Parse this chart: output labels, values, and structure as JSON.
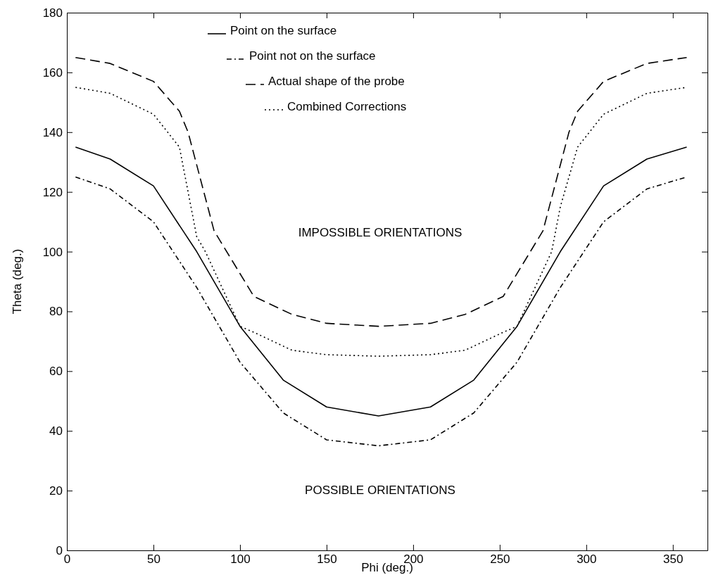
{
  "chart_data": {
    "type": "line",
    "xlabel": "Phi (deg.)",
    "ylabel": "Theta (deg.)",
    "xlim": [
      0,
      370
    ],
    "xticks": [
      0,
      50,
      100,
      150,
      200,
      250,
      300,
      350
    ],
    "ylim": [
      0,
      180
    ],
    "yticks": [
      0,
      20,
      40,
      60,
      80,
      100,
      120,
      140,
      160,
      180
    ],
    "grid": false,
    "legend": "top",
    "marker": "none",
    "annotations": [
      "IMPOSSIBLE ORIENTATIONS",
      "POSSIBLE ORIENTATIONS"
    ],
    "series": [
      {
        "name": "Point on the surface",
        "color": "#000000",
        "line_style": "solid",
        "x": [
          5,
          25,
          50,
          75,
          100,
          125,
          150,
          180,
          210,
          235,
          260,
          285,
          310,
          335,
          358
        ],
        "values": [
          135,
          131,
          122,
          100,
          75,
          57,
          48,
          45,
          48,
          57,
          75,
          100,
          122,
          131,
          135
        ]
      },
      {
        "name": "Point not on the surface",
        "color": "#000000",
        "line_style": "dashdot",
        "x": [
          5,
          25,
          50,
          75,
          100,
          125,
          150,
          180,
          210,
          235,
          260,
          285,
          310,
          335,
          358
        ],
        "values": [
          125,
          121,
          110,
          88,
          63,
          46,
          37,
          35,
          37,
          46,
          63,
          88,
          110,
          121,
          125
        ]
      },
      {
        "name": "Actual shape of the probe",
        "color": "#000000",
        "line_style": "dashed",
        "x": [
          5,
          25,
          50,
          65,
          70,
          85,
          108,
          130,
          150,
          180,
          210,
          230,
          252,
          275,
          290,
          295,
          310,
          335,
          358
        ],
        "values": [
          165,
          163,
          157,
          147,
          140,
          107,
          85,
          79,
          76,
          75,
          76,
          79,
          85,
          107,
          140,
          147,
          157,
          163,
          165
        ]
      },
      {
        "name": "Combined Corrections",
        "color": "#000000",
        "line_style": "dotted",
        "x": [
          5,
          25,
          50,
          65,
          75,
          80,
          100,
          108,
          130,
          150,
          180,
          210,
          230,
          252,
          260,
          280,
          285,
          295,
          310,
          335,
          358
        ],
        "values": [
          155,
          153,
          146,
          135,
          105,
          100,
          75,
          73,
          67,
          65.5,
          65,
          65.5,
          67,
          73,
          75,
          100,
          115,
          135,
          146,
          153,
          155
        ]
      }
    ]
  }
}
